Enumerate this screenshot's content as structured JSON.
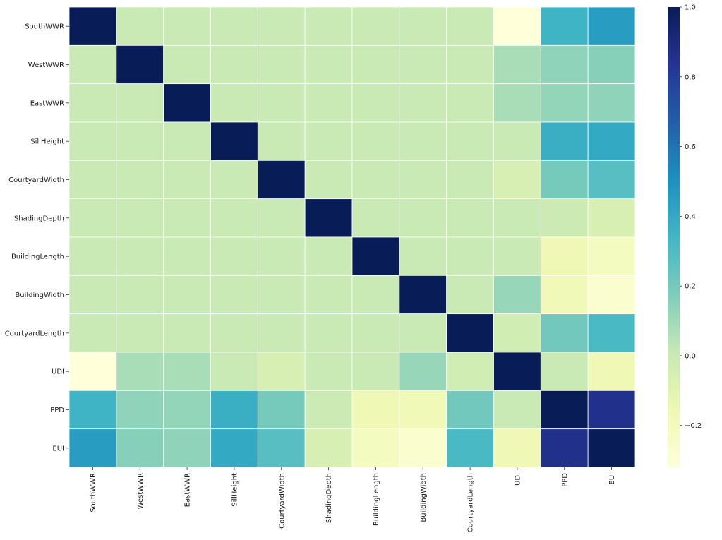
{
  "chart_data": {
    "type": "heatmap",
    "title": "",
    "xlabel": "",
    "ylabel": "",
    "rows": [
      "SouthWWR",
      "WestWWR",
      "EastWWR",
      "SillHeight",
      "CourtyardWidth",
      "ShadingDepth",
      "BuildingLength",
      "BuildingWidth",
      "CourtyardLength",
      "UDI",
      "PPD",
      "EUI"
    ],
    "columns": [
      "SouthWWR",
      "WestWWR",
      "EastWWR",
      "SillHeight",
      "CourtyardWidth",
      "ShadingDepth",
      "BuildingLength",
      "BuildingWidth",
      "CourtyardLength",
      "UDI",
      "PPD",
      "EUI"
    ],
    "values": [
      [
        1.0,
        0.0,
        0.0,
        0.0,
        0.0,
        0.0,
        0.0,
        0.0,
        0.0,
        -0.32,
        0.35,
        0.45
      ],
      [
        0.0,
        1.0,
        0.0,
        0.0,
        0.0,
        0.0,
        0.0,
        0.0,
        0.0,
        0.08,
        0.14,
        0.16
      ],
      [
        0.0,
        0.0,
        1.0,
        0.0,
        0.0,
        0.0,
        0.0,
        0.0,
        0.0,
        0.08,
        0.13,
        0.14
      ],
      [
        0.0,
        0.0,
        0.0,
        1.0,
        0.0,
        0.0,
        0.0,
        0.0,
        0.0,
        0.0,
        0.37,
        0.4
      ],
      [
        0.0,
        0.0,
        0.0,
        0.0,
        1.0,
        0.0,
        0.0,
        0.0,
        0.0,
        -0.06,
        0.2,
        0.28
      ],
      [
        0.0,
        0.0,
        0.0,
        0.0,
        0.0,
        1.0,
        0.0,
        0.0,
        0.0,
        0.0,
        -0.01,
        -0.06
      ],
      [
        0.0,
        0.0,
        0.0,
        0.0,
        0.0,
        0.0,
        1.0,
        0.0,
        0.0,
        0.0,
        -0.17,
        -0.22
      ],
      [
        0.0,
        0.0,
        0.0,
        0.0,
        0.0,
        0.0,
        0.0,
        1.0,
        0.0,
        0.12,
        -0.19,
        -0.27
      ],
      [
        0.0,
        0.0,
        0.0,
        0.0,
        0.0,
        0.0,
        0.0,
        0.0,
        1.0,
        -0.03,
        0.21,
        0.32
      ],
      [
        -0.32,
        0.08,
        0.08,
        0.0,
        -0.06,
        0.0,
        0.0,
        0.12,
        -0.03,
        1.0,
        0.0,
        -0.17
      ],
      [
        0.35,
        0.14,
        0.13,
        0.37,
        0.2,
        -0.01,
        -0.17,
        -0.19,
        0.21,
        0.0,
        1.0,
        0.86
      ],
      [
        0.45,
        0.16,
        0.14,
        0.4,
        0.28,
        -0.06,
        -0.22,
        -0.27,
        0.32,
        -0.17,
        0.86,
        1.0
      ]
    ],
    "colormap": "YlGnBu",
    "vmin": -0.32,
    "vmax": 1.0,
    "grid": true,
    "colorbar": {
      "position": "right",
      "ticks": [
        1.0,
        0.8,
        0.6,
        0.4,
        0.2,
        0.0,
        -0.2
      ],
      "tick_labels": [
        "1.0",
        "0.8",
        "0.6",
        "0.4",
        "0.2",
        "0.0",
        "−0.2"
      ]
    }
  },
  "colors": {
    "background": "#ffffff",
    "cell_border": "#ffffff",
    "text": "#1a1a1a",
    "ylgnbu_stops": [
      "#ffffd9",
      "#edf8b1",
      "#c7e9b4",
      "#7fcdbb",
      "#41b6c4",
      "#1d91c0",
      "#225ea8",
      "#253494",
      "#081d58"
    ]
  }
}
